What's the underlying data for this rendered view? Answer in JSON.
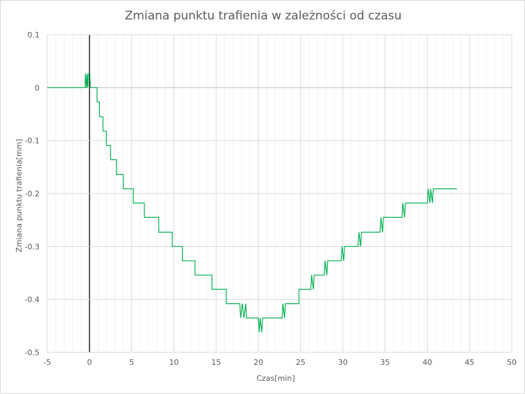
{
  "chart_data": {
    "type": "line",
    "title": "Zmiana punktu trafienia w zależności od czasu",
    "xlabel": "Czas[min]",
    "ylabel": "Zmiana punktu trafienia[mm]",
    "xlim": [
      -5,
      50
    ],
    "ylim": [
      -0.5,
      0.1
    ],
    "x_ticks": [
      -5,
      0,
      5,
      10,
      15,
      20,
      25,
      30,
      35,
      40,
      45,
      50
    ],
    "x_tick_labels": [
      "-5",
      "0",
      "5",
      "10",
      "15",
      "20",
      "25",
      "30",
      "35",
      "40",
      "45",
      "50"
    ],
    "y_ticks": [
      0.1,
      0,
      -0.1,
      -0.2,
      -0.3,
      -0.4,
      -0.5
    ],
    "y_tick_labels": [
      "0.1",
      "0",
      "-0.1",
      "-0.2",
      "-0.3",
      "-0.4",
      "-0.5"
    ],
    "x_minor_step": 1,
    "grid": true,
    "legend": "none",
    "series": [
      {
        "color": "#00b050",
        "points": [
          [
            -5,
            0
          ],
          [
            -0.5,
            0
          ],
          [
            -0.5,
            0.026
          ],
          [
            -0.35,
            0
          ],
          [
            -0.3,
            0.026
          ],
          [
            -0.2,
            0
          ],
          [
            -0.15,
            0.026
          ],
          [
            0.05,
            0.026
          ],
          [
            0.1,
            0
          ],
          [
            0.9,
            0
          ],
          [
            0.9,
            -0.027
          ],
          [
            1.2,
            -0.027
          ],
          [
            1.2,
            -0.055
          ],
          [
            1.6,
            -0.055
          ],
          [
            1.6,
            -0.082
          ],
          [
            2.0,
            -0.082
          ],
          [
            2.0,
            -0.109
          ],
          [
            2.5,
            -0.109
          ],
          [
            2.5,
            -0.136
          ],
          [
            3.2,
            -0.136
          ],
          [
            3.2,
            -0.164
          ],
          [
            4.0,
            -0.164
          ],
          [
            4.0,
            -0.191
          ],
          [
            5.2,
            -0.191
          ],
          [
            5.2,
            -0.218
          ],
          [
            6.5,
            -0.218
          ],
          [
            6.5,
            -0.245
          ],
          [
            8.2,
            -0.245
          ],
          [
            8.2,
            -0.273
          ],
          [
            9.8,
            -0.273
          ],
          [
            9.8,
            -0.3
          ],
          [
            11.0,
            -0.3
          ],
          [
            11.0,
            -0.327
          ],
          [
            12.5,
            -0.327
          ],
          [
            12.5,
            -0.354
          ],
          [
            14.5,
            -0.354
          ],
          [
            14.5,
            -0.381
          ],
          [
            16.2,
            -0.381
          ],
          [
            16.2,
            -0.408
          ],
          [
            17.8,
            -0.408
          ],
          [
            17.9,
            -0.435
          ],
          [
            18.1,
            -0.408
          ],
          [
            18.3,
            -0.435
          ],
          [
            18.5,
            -0.408
          ],
          [
            18.6,
            -0.435
          ],
          [
            20.0,
            -0.435
          ],
          [
            20.1,
            -0.462
          ],
          [
            20.2,
            -0.435
          ],
          [
            20.4,
            -0.462
          ],
          [
            20.5,
            -0.435
          ],
          [
            22.8,
            -0.435
          ],
          [
            22.9,
            -0.408
          ],
          [
            23.1,
            -0.435
          ],
          [
            23.2,
            -0.408
          ],
          [
            24.8,
            -0.408
          ],
          [
            24.8,
            -0.381
          ],
          [
            26.2,
            -0.381
          ],
          [
            26.3,
            -0.354
          ],
          [
            26.5,
            -0.381
          ],
          [
            26.6,
            -0.354
          ],
          [
            27.8,
            -0.354
          ],
          [
            27.9,
            -0.327
          ],
          [
            28.1,
            -0.354
          ],
          [
            28.2,
            -0.327
          ],
          [
            29.8,
            -0.327
          ],
          [
            29.9,
            -0.3
          ],
          [
            30.1,
            -0.327
          ],
          [
            30.2,
            -0.3
          ],
          [
            31.8,
            -0.3
          ],
          [
            31.9,
            -0.273
          ],
          [
            32.1,
            -0.3
          ],
          [
            32.2,
            -0.273
          ],
          [
            34.4,
            -0.273
          ],
          [
            34.5,
            -0.245
          ],
          [
            34.7,
            -0.273
          ],
          [
            34.8,
            -0.245
          ],
          [
            37.0,
            -0.245
          ],
          [
            37.1,
            -0.218
          ],
          [
            37.3,
            -0.245
          ],
          [
            37.4,
            -0.218
          ],
          [
            40.0,
            -0.218
          ],
          [
            40.1,
            -0.191
          ],
          [
            40.3,
            -0.218
          ],
          [
            40.4,
            -0.191
          ],
          [
            40.6,
            -0.218
          ],
          [
            40.7,
            -0.191
          ],
          [
            43.5,
            -0.191
          ]
        ]
      }
    ]
  }
}
